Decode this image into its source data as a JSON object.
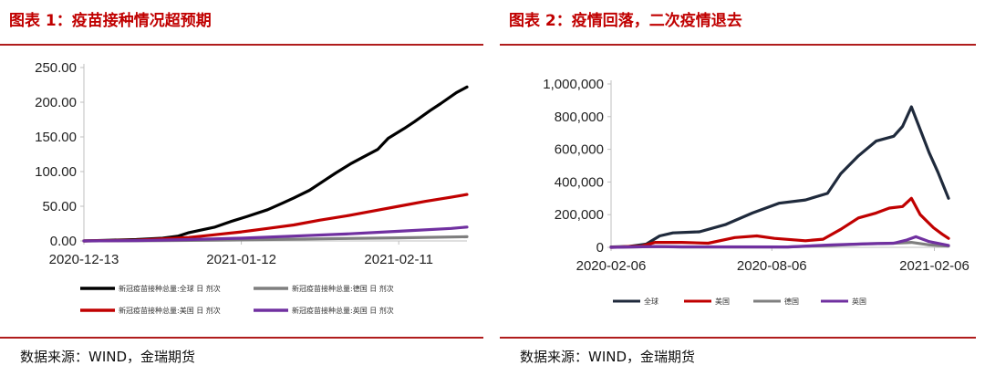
{
  "left": {
    "title": "图表 1：疫苗接种情况超预期",
    "source": "数据来源：WIND，金瑞期货"
  },
  "right": {
    "title": "图表 2：疫情回落，二次疫情退去",
    "source": "数据来源：WIND，金瑞期货"
  },
  "chart_data": [
    {
      "type": "line",
      "title": "图表 1：疫苗接种情况超预期",
      "xlabel": "",
      "ylabel": "",
      "x_ticks": [
        "2020-12-13",
        "2021-01-12",
        "2021-02-11"
      ],
      "x_tick_days": [
        0,
        30,
        60
      ],
      "x_range_days": [
        0,
        73
      ],
      "ylim": [
        0,
        250
      ],
      "y_ticks": [
        "0.00",
        "50.00",
        "100.00",
        "150.00",
        "200.00",
        "250.00"
      ],
      "y_tick_values": [
        0,
        50,
        100,
        150,
        200,
        250
      ],
      "grid": false,
      "legend_position": "bottom",
      "series": [
        {
          "name": "新冠疫苗接种总量:全球 日 剂次",
          "color": "#000000",
          "points": [
            [
              0,
              0
            ],
            [
              5,
              1
            ],
            [
              10,
              2
            ],
            [
              15,
              4
            ],
            [
              18,
              7
            ],
            [
              20,
              12
            ],
            [
              25,
              20
            ],
            [
              28,
              28
            ],
            [
              31,
              35
            ],
            [
              35,
              45
            ],
            [
              38,
              55
            ],
            [
              40,
              62
            ],
            [
              43,
              73
            ],
            [
              46,
              88
            ],
            [
              48,
              98
            ],
            [
              51,
              112
            ],
            [
              53,
              120
            ],
            [
              56,
              132
            ],
            [
              58,
              148
            ],
            [
              61,
              162
            ],
            [
              63,
              172
            ],
            [
              66,
              188
            ],
            [
              68,
              198
            ],
            [
              71,
              214
            ],
            [
              73,
              222
            ]
          ]
        },
        {
          "name": "新冠疫苗接种总量:德国 日 剂次",
          "color": "#7f7f7f",
          "points": [
            [
              0,
              0
            ],
            [
              15,
              0.5
            ],
            [
              30,
              1.5
            ],
            [
              45,
              3
            ],
            [
              60,
              4.5
            ],
            [
              73,
              6
            ]
          ]
        },
        {
          "name": "新冠疫苗接种总量:美国 日 剂次",
          "color": "#c00000",
          "points": [
            [
              0,
              0
            ],
            [
              10,
              1
            ],
            [
              15,
              3
            ],
            [
              20,
              5
            ],
            [
              25,
              9
            ],
            [
              30,
              13
            ],
            [
              35,
              18
            ],
            [
              40,
              23
            ],
            [
              45,
              30
            ],
            [
              50,
              36
            ],
            [
              55,
              43
            ],
            [
              60,
              50
            ],
            [
              65,
              57
            ],
            [
              70,
              63
            ],
            [
              73,
              67
            ]
          ]
        },
        {
          "name": "新冠疫苗接种总量:英国 日 剂次",
          "color": "#7030a0",
          "points": [
            [
              0,
              0
            ],
            [
              10,
              0.5
            ],
            [
              20,
              2
            ],
            [
              30,
              4
            ],
            [
              40,
              7
            ],
            [
              50,
              10
            ],
            [
              60,
              14
            ],
            [
              70,
              18
            ],
            [
              73,
              20
            ]
          ]
        }
      ]
    },
    {
      "type": "line",
      "title": "图表 2：疫情回落，二次疫情退去",
      "xlabel": "",
      "ylabel": "",
      "x_ticks": [
        "2020-02-06",
        "2020-08-06",
        "2021-02-06"
      ],
      "x_tick_days": [
        0,
        182,
        366
      ],
      "x_range_days": [
        0,
        382
      ],
      "ylim": [
        0,
        1000000
      ],
      "y_ticks": [
        "0",
        "200,000",
        "400,000",
        "600,000",
        "800,000",
        "1,000,000"
      ],
      "y_tick_values": [
        0,
        200000,
        400000,
        600000,
        800000,
        1000000
      ],
      "grid": false,
      "legend_position": "bottom",
      "series": [
        {
          "name": "全球",
          "color": "#1f2a3c",
          "points": [
            [
              0,
              2000
            ],
            [
              20,
              5000
            ],
            [
              40,
              20000
            ],
            [
              55,
              70000
            ],
            [
              70,
              88000
            ],
            [
              100,
              95000
            ],
            [
              130,
              140000
            ],
            [
              160,
              210000
            ],
            [
              190,
              270000
            ],
            [
              220,
              290000
            ],
            [
              245,
              330000
            ],
            [
              260,
              450000
            ],
            [
              280,
              560000
            ],
            [
              300,
              650000
            ],
            [
              320,
              680000
            ],
            [
              330,
              740000
            ],
            [
              340,
              860000
            ],
            [
              350,
              720000
            ],
            [
              360,
              580000
            ],
            [
              370,
              460000
            ],
            [
              382,
              300000
            ]
          ]
        },
        {
          "name": "美国",
          "color": "#c00000",
          "points": [
            [
              0,
              0
            ],
            [
              35,
              8000
            ],
            [
              50,
              30000
            ],
            [
              80,
              30000
            ],
            [
              110,
              25000
            ],
            [
              140,
              60000
            ],
            [
              165,
              70000
            ],
            [
              185,
              55000
            ],
            [
              220,
              40000
            ],
            [
              240,
              50000
            ],
            [
              260,
              110000
            ],
            [
              280,
              180000
            ],
            [
              300,
              210000
            ],
            [
              315,
              240000
            ],
            [
              330,
              250000
            ],
            [
              340,
              300000
            ],
            [
              350,
              200000
            ],
            [
              365,
              120000
            ],
            [
              375,
              80000
            ],
            [
              382,
              55000
            ]
          ]
        },
        {
          "name": "德国",
          "color": "#7f7f7f",
          "points": [
            [
              0,
              0
            ],
            [
              50,
              5000
            ],
            [
              80,
              2000
            ],
            [
              200,
              2000
            ],
            [
              250,
              12000
            ],
            [
              290,
              22000
            ],
            [
              320,
              25000
            ],
            [
              340,
              30000
            ],
            [
              360,
              15000
            ],
            [
              382,
              8000
            ]
          ]
        },
        {
          "name": "英国",
          "color": "#7030a0",
          "points": [
            [
              0,
              0
            ],
            [
              50,
              5000
            ],
            [
              80,
              3000
            ],
            [
              200,
              2000
            ],
            [
              250,
              15000
            ],
            [
              290,
              22000
            ],
            [
              320,
              25000
            ],
            [
              335,
              45000
            ],
            [
              345,
              65000
            ],
            [
              360,
              35000
            ],
            [
              382,
              12000
            ]
          ]
        }
      ]
    }
  ]
}
